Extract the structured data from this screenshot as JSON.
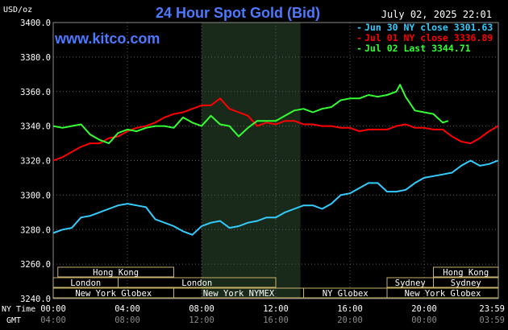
{
  "header": {
    "title": "24 Hour Spot Gold (Bid)",
    "date_time": "July 02, 2025 22:01",
    "unit": "USD/oz",
    "watermark": "www.kitco.com"
  },
  "legend": [
    {
      "marker": "-",
      "text": "Jun 30 NY close 3301.63",
      "color": "#33ccff"
    },
    {
      "marker": "-",
      "text": "Jul 01 NY close 3336.89",
      "color": "#ff0000"
    },
    {
      "marker": "-",
      "text": "Jul 02 Last 3344.71",
      "color": "#33ff33"
    }
  ],
  "row_labels": {
    "ny": "NY Time",
    "gmt": "GMT"
  },
  "x_ticks": {
    "ny": [
      "00:00",
      "04:00",
      "08:00",
      "12:00",
      "16:00",
      "20:00",
      "23:59"
    ],
    "gmt": [
      "04:00",
      "08:00",
      "12:00",
      "16:00",
      "20:00",
      "00:00",
      "03:59"
    ]
  },
  "sessions": [
    {
      "label": "Hong Kong",
      "row": 0,
      "start": 0.25,
      "end": 6.5
    },
    {
      "label": "Hong Kong",
      "row": 0,
      "start": 20.5,
      "end": 24.0
    },
    {
      "label": "London",
      "row": 1,
      "start": -0.5,
      "end": 3.5
    },
    {
      "label": "London",
      "row": 1,
      "start": 3.5,
      "end": 12.0
    },
    {
      "label": "Sydney",
      "row": 1,
      "start": 18.0,
      "end": 20.5
    },
    {
      "label": "Sydney",
      "row": 1,
      "start": 20.5,
      "end": 24.0
    },
    {
      "label": "New York Globex",
      "row": 2,
      "start": -0.5,
      "end": 6.5
    },
    {
      "label": "New York NYMEX",
      "row": 2,
      "start": 6.5,
      "end": 13.5
    },
    {
      "label": "NY Globex",
      "row": 2,
      "start": 13.5,
      "end": 18.0
    },
    {
      "label": "New York Globex",
      "row": 2,
      "start": 18.0,
      "end": 24.0
    }
  ],
  "chart_data": {
    "type": "line",
    "ylim": [
      3240,
      3400
    ],
    "yticks": [
      3240,
      3260,
      3280,
      3300,
      3320,
      3340,
      3360,
      3380,
      3400
    ],
    "xlim": [
      0,
      24
    ],
    "shaded_region": [
      8,
      13.33
    ],
    "grid": true,
    "series": [
      {
        "name": "Jun 30 NY close 3301.63",
        "color": "#33ccff",
        "x": [
          0,
          0.5,
          1,
          1.5,
          2,
          2.5,
          3,
          3.5,
          4,
          4.5,
          5,
          5.5,
          6,
          6.5,
          7,
          7.5,
          8,
          8.5,
          9,
          9.5,
          10,
          10.5,
          11,
          11.5,
          12,
          12.5,
          13,
          13.5,
          14,
          14.5,
          15,
          15.5,
          16,
          16.5,
          17,
          17.5,
          18,
          18.5,
          19,
          19.5,
          20,
          20.5,
          21,
          21.5,
          22,
          22.5,
          23,
          23.5,
          23.98
        ],
        "y": [
          3278,
          3280,
          3281,
          3287,
          3288,
          3290,
          3292,
          3294,
          3295,
          3294,
          3293,
          3286,
          3284,
          3282,
          3279,
          3277,
          3282,
          3284,
          3285,
          3281,
          3282,
          3284,
          3285,
          3287,
          3287,
          3290,
          3292,
          3294,
          3294,
          3292,
          3295,
          3300,
          3301,
          3304,
          3307,
          3307,
          3302,
          3302,
          3303,
          3307,
          3310,
          3311,
          3312,
          3313,
          3317,
          3320,
          3317,
          3318,
          3320
        ]
      },
      {
        "name": "Jul 01 NY close 3336.89",
        "color": "#ff0000",
        "x": [
          0,
          0.5,
          1,
          1.5,
          2,
          2.5,
          3,
          3.5,
          4,
          4.5,
          5,
          5.5,
          6,
          6.5,
          7,
          7.5,
          8,
          8.5,
          9,
          9.5,
          10,
          10.5,
          11,
          11.5,
          12,
          12.5,
          13,
          13.5,
          14,
          14.5,
          15,
          15.5,
          16,
          16.5,
          17,
          17.5,
          18,
          18.5,
          19,
          19.5,
          20,
          20.5,
          21,
          21.5,
          22,
          22.5,
          23,
          23.5,
          23.98
        ],
        "y": [
          3320,
          3322,
          3325,
          3328,
          3330,
          3330,
          3333,
          3334,
          3337,
          3339,
          3340,
          3342,
          3345,
          3347,
          3348,
          3350,
          3352,
          3352,
          3356,
          3350,
          3348,
          3346,
          3340,
          3342,
          3341,
          3343,
          3343,
          3341,
          3341,
          3340,
          3340,
          3339,
          3339,
          3337,
          3338,
          3338,
          3338,
          3340,
          3341,
          3339,
          3339,
          3338,
          3338,
          3334,
          3331,
          3330,
          3333,
          3337,
          3340
        ]
      },
      {
        "name": "Jul 02 Last 3344.71",
        "color": "#33ff33",
        "x": [
          0,
          0.5,
          1,
          1.5,
          2,
          2.5,
          3,
          3.5,
          4,
          4.5,
          5,
          5.5,
          6,
          6.5,
          7,
          7.5,
          8,
          8.5,
          9,
          9.5,
          10,
          10.5,
          11,
          11.5,
          12,
          12.5,
          13,
          13.5,
          14,
          14.5,
          15,
          15.5,
          16,
          16.5,
          17,
          17.5,
          18,
          18.5,
          18.7,
          19,
          19.5,
          20,
          20.5,
          21,
          21.3
        ],
        "y": [
          3340,
          3339,
          3340,
          3341,
          3335,
          3332,
          3330,
          3336,
          3338,
          3337,
          3339,
          3340,
          3340,
          3339,
          3345,
          3342,
          3340,
          3346,
          3341,
          3340,
          3334,
          3339,
          3343,
          3343,
          3343,
          3346,
          3349,
          3350,
          3348,
          3350,
          3351,
          3355,
          3356,
          3356,
          3358,
          3357,
          3358,
          3360,
          3364,
          3357,
          3349,
          3348,
          3347,
          3342,
          3343
        ]
      }
    ]
  }
}
